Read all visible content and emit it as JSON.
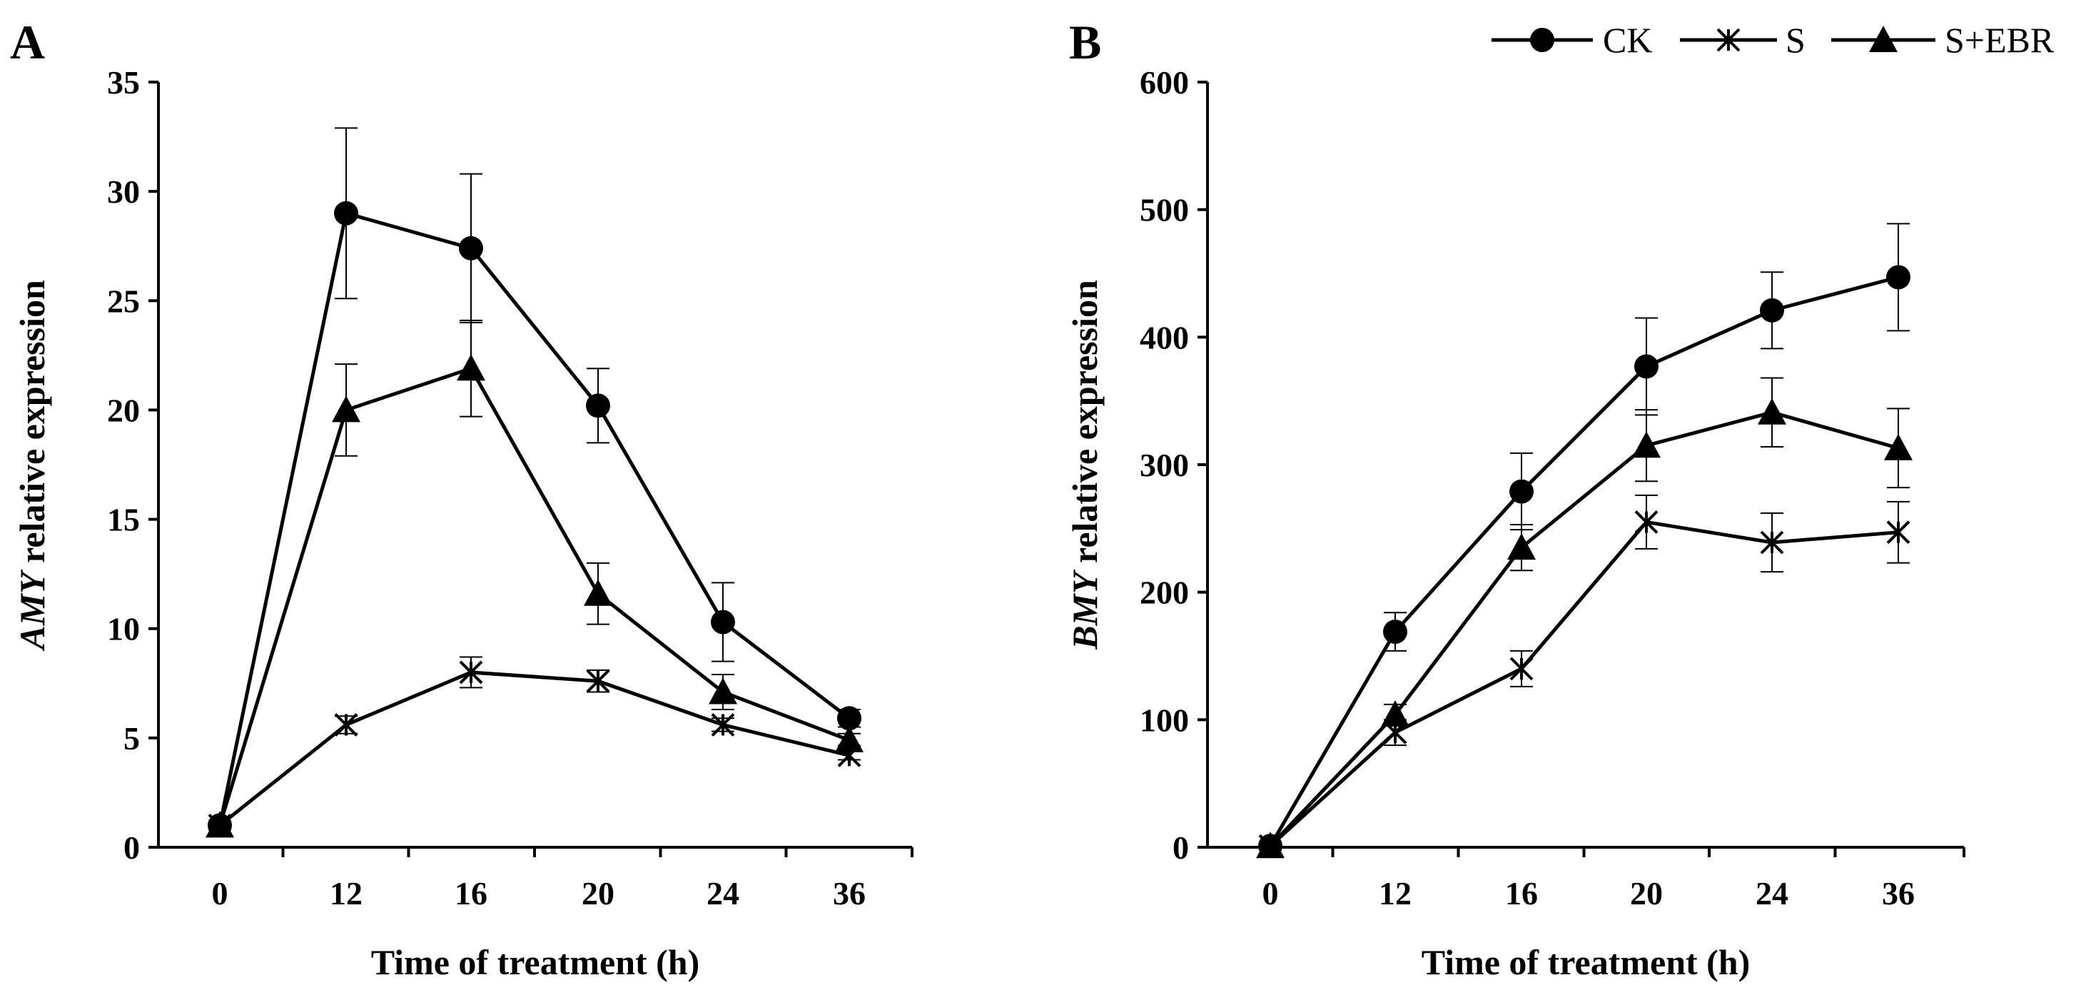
{
  "legend": {
    "items": [
      {
        "label": "CK",
        "marker": "circle"
      },
      {
        "label": "S",
        "marker": "asterisk"
      },
      {
        "label": "S+EBR",
        "marker": "triangle"
      }
    ]
  },
  "chart_data": [
    {
      "panel": "A",
      "type": "line",
      "title": "",
      "xlabel": "Time of treatment (h)",
      "ylabel_italic": "AMY",
      "ylabel_rest": " relative expression",
      "categories": [
        "0",
        "12",
        "16",
        "20",
        "24",
        "36"
      ],
      "ylim": [
        0,
        35
      ],
      "yticks": [
        0,
        5,
        10,
        15,
        20,
        25,
        30,
        35
      ],
      "ytick_labels": [
        "0",
        "5",
        "10",
        "15",
        "20",
        "25",
        "30",
        "35"
      ],
      "series": [
        {
          "name": "CK",
          "marker": "circle",
          "values": [
            1.0,
            29.0,
            27.4,
            20.2,
            10.3,
            5.9
          ],
          "errors": [
            0.2,
            3.9,
            3.4,
            1.7,
            1.8,
            0.4
          ]
        },
        {
          "name": "S",
          "marker": "asterisk",
          "values": [
            1.0,
            5.6,
            8.0,
            7.6,
            5.6,
            4.2
          ],
          "errors": [
            0.2,
            0.4,
            0.7,
            0.5,
            0.3,
            0.2
          ]
        },
        {
          "name": "S+EBR",
          "marker": "triangle",
          "values": [
            1.0,
            20.0,
            21.9,
            11.6,
            7.1,
            4.9
          ],
          "errors": [
            0.2,
            2.1,
            2.2,
            1.4,
            0.8,
            0.3
          ]
        }
      ]
    },
    {
      "panel": "B",
      "type": "line",
      "title": "",
      "xlabel": "Time of treatment (h)",
      "ylabel_italic": "BMY",
      "ylabel_rest": " relative expression",
      "categories": [
        "0",
        "12",
        "16",
        "20",
        "24",
        "36"
      ],
      "ylim": [
        0,
        600
      ],
      "yticks": [
        0,
        100,
        200,
        300,
        400,
        500,
        600
      ],
      "ytick_labels": [
        "0",
        "100",
        "200",
        "300",
        "400",
        "500",
        "600"
      ],
      "series": [
        {
          "name": "CK",
          "marker": "circle",
          "values": [
            1,
            169,
            279,
            377,
            421,
            447
          ],
          "errors": [
            2,
            15,
            30,
            38,
            30,
            42
          ]
        },
        {
          "name": "S",
          "marker": "asterisk",
          "values": [
            1,
            90,
            140,
            255,
            239,
            247
          ],
          "errors": [
            2,
            10,
            14,
            21,
            23,
            24
          ]
        },
        {
          "name": "S+EBR",
          "marker": "triangle",
          "values": [
            1,
            104,
            235,
            315,
            341,
            313
          ],
          "errors": [
            2,
            8,
            18,
            28,
            27,
            31
          ]
        }
      ]
    }
  ]
}
